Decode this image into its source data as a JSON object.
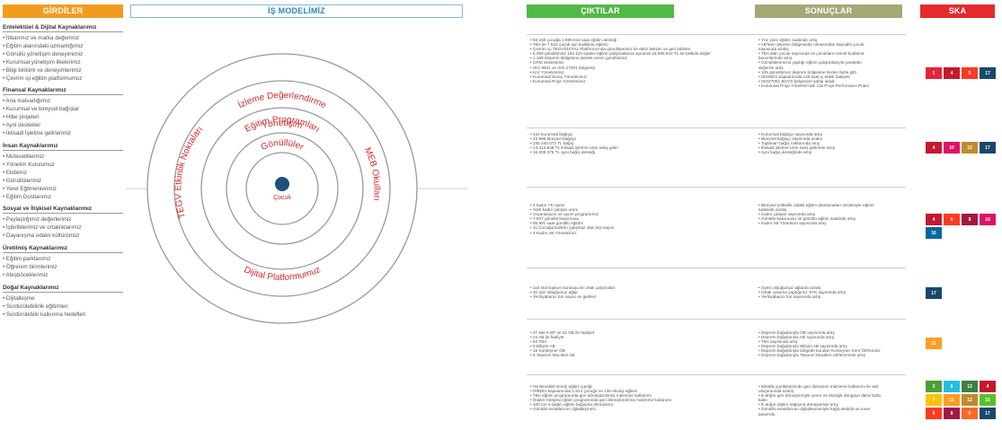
{
  "headers": {
    "inputs": "GİRDİLER",
    "model": "İŞ MODELİMİZ",
    "outputs": "ÇIKTILAR",
    "results": "SONUÇLAR",
    "ska": "SKA"
  },
  "colors": {
    "inputs": "#f29c1f",
    "model": "#7fb8dd",
    "outputs": "#52b848",
    "results": "#a6a875",
    "ska": "#e32b2b",
    "center": "#1f4f7a",
    "ring_text": "#d52a2a"
  },
  "inputs": [
    {
      "title": "Entelektüel & Dijital Kaynaklarımız",
      "items": [
        "İtibarımız ve marka değerimiz",
        "Eğitim alanındaki uzmanlığımız",
        "Gönüllü yönetişim deneyimimiz",
        "Kurumsal yönetişim ilkelerimiz",
        "Bilgi birikimi ve deneyimlerimiz",
        "Çevrim içi eğitim platformumuz"
      ]
    },
    {
      "title": "Finansal Kaynaklarımız",
      "items": [
        "Ana malvarlığımız",
        "Kurumsal ve bireysel bağışlar",
        "Hibe projeleri",
        "Ayni destekler",
        "İktisadi İşletme gelirlerimiz"
      ]
    },
    {
      "title": "İnsan Kaynaklarımız",
      "items": [
        "Mütevellilerimiz",
        "Yönetim Kurulumuz",
        "Ekibimiz",
        "Gönüllülerimiz",
        "Yerel Eğitmenlerimiz",
        "Eğitim Dostlarımız"
      ]
    },
    {
      "title": "Sosyal ve İlişkisel Kaynaklarımız",
      "items": [
        "Paylaştığımız değerlerimiz",
        "İşbirliklerimiz ve ortaklıklarımız",
        "Dayanışma odaklı kültürümüz"
      ]
    },
    {
      "title": "Üretilmiş Kaynaklarımız",
      "items": [
        "Eğitim parklarımız",
        "Öğrenim birimlerimiz",
        "Ateşböceklerimiz"
      ]
    },
    {
      "title": "Doğal Kaynaklarımız",
      "items": [
        "Dijitalleşme",
        "Sürdürülebilirlik eğitimleri",
        "Sürdürülebilir kalkınma hedefleri"
      ]
    }
  ],
  "model": {
    "rings": [
      "Yönetişim",
      "İzleme Değerlendirme",
      "Eğitim Programları",
      "Gönüllüler",
      "Çocuk"
    ],
    "left_label": "TEGV Etkinlik Noktaları",
    "right_label": "MEB Okulları",
    "bottom_label": "Dijital Platformumuz"
  },
  "outputs": [
    [
      "83.150 çocuğa 1.999.615 saat eğitim desteği",
      "TBA ile 7.522 çocuk için kodlama eğitimi",
      "Çevrim içi TEGVDİJİTAL Platformu'nda gönüllülerimiz ile etkin iletişim ve geri bildirim",
      "5.490 gönüllümüz 182.115 saatini eğitim çalışmalarına ayırarak 15.685.942 TL ile katkıda değer",
      "1.188 Deprem Bölgesine destek veren gönüllümüz",
      "CRM Sistemimiz",
      "ISO 9001 ve ISO 27001 belgemiz",
      "Kriz Yönetimimiz",
      "Kurumsal Süreç Yönetimimiz",
      "Kurumsal Proje Yönetimimiz"
    ],
    [
      "444 kurumsal bağışçı",
      "23.995 bireysel bağışçı",
      "235.440.072 TL bağış",
      "13.314.848 TL iktisadi işletme ürün satış geliri",
      "16.209.376 TL ayni bağış desteği"
    ],
    [
      "4 kadın YK üyesi",
      "%55 kadın çalışan oranı",
      "Oryantasyon ve uyum programımız",
      "7.937 gönüllü başvurusu",
      "85.991 saat gönüllü eğitimi",
      "11 Çocuğumuzken çalışmaz olan kişi sayısı",
      "4 Kadın AB Yöneticimiz"
    ],
    [
      "110 sivil toplum kuruluşu ile ortak çalışmalar",
      "20 üye olduğumuz ağlar",
      "Yerli/yabancı fon sayısı ve gelirleri"
    ],
    [
      "27 ilde 6 EP ve 42 ÖB ile faaliyet",
      "24 AB ile faaliyet",
      "53 TBA",
      "8 Bilişim AB",
      "15 Konteyner ÖB",
      "5 Tasarım Mucitleri AB"
    ],
    [
      "Yenilenebilir Enerji eğitim içeriği",
      "DİBDİA kapsamında 1.914 çocuğa ve 136 ekoloji eğitimi",
      "TBA eğitim programında geri dönüştürülmüş malzeme kullanımı",
      "Düşler Atölyesi eğitim programında geri dönüştürülmüş malzeme kullanımı",
      "100 ton e-atığın eğitim bağışına dönüşümü",
      "Gönüllü evraklarının dijitalleşmesi"
    ]
  ],
  "results": [
    [
      "Yüz yüze eğitim saatinde artış",
      "AB'lerin deprem bölgesinde olmasından kaynaklı çocuk",
      "sayısında azalış",
      "TBA alan çocuk sayısında ve çocukların temel kodlama",
      "becerilerinde artış",
      "Gönüllülerimizin yaptığı eğitim çalışmalarıyla yaratılan",
      "değerde artış",
      "109 gönüllümüz deprem bölgesine birden fazla gitti",
      "ISO9001 kapsamında 140 saat iç tetkik faaliyeti",
      "ISO27001 BGYS belgesine sahip olduk",
      "Kurumsal Proje Yönetimi'nde 115 Proje Performans Puanı"
    ],
    [
      "Kurumsal bağışçı sayısında artış",
      "Bireysel bağışçı sayısında azalış",
      "Toplanan bağış miktarında artış",
      "İktisadi işletme ürün satış gelirinde artış",
      "Ayni bağış desteğinde artış"
    ],
    [
      "Bireysel yetkinlik odaklı eğitim planlamaları vesilesiyle eğitim",
      "saatinde azalış",
      "Kadın çalışan sayısında artış",
      "Gönüllü başvurusu ve gönüllü eğitim saatinde artış",
      "Kadın AB Yöneticisi sayısında artış"
    ],
    [
      "Üyesi olduğumuz ağlarda azalış",
      "Ortak çalışma yaptığımız STK sayısında artış",
      "Yerli/yabancı fon sayısında artış"
    ],
    [
      "Deprem bağışlarıyla ÖB sayısında artış",
      "Deprem bağışlarıyla AB sayısında artış",
      "TBA sayısında artış",
      "Deprem bağışlarıyla Bilişim AB sayısında artış",
      "Deprem bağışlarıyla bölgede kurulan Konteyner Kent ÖB'lerimiz",
      "Deprem bağışlarıyla Tasarım Mucitleri AB'lerimizde artış"
    ],
    [
      "Etkinlik içeriklerimizde geri dönüşüm malzeme kullanımı ile atık",
      "oluşumunda azalış",
      "E-atığın geri dönüşümüyle çevre ve ekolojik döngüye daha fazla",
      "katkı",
      "E-atığın eğitim bağışına dönüşümde artış",
      "Gönüllü evraklarının dijitalleşmesiyle kağıt,elektrik ve toner",
      "tasarrufu"
    ]
  ],
  "ska": [
    [
      {
        "n": "1",
        "c": "#e5243b"
      },
      {
        "n": "4",
        "c": "#c5192d"
      },
      {
        "n": "5",
        "c": "#ff3a21"
      },
      {
        "n": "17",
        "c": "#19486a"
      }
    ],
    [
      {
        "n": "4",
        "c": "#c5192d"
      },
      {
        "n": "10",
        "c": "#dd1367"
      },
      {
        "n": "12",
        "c": "#bf8b2e"
      },
      {
        "n": "17",
        "c": "#19486a"
      }
    ],
    [
      {
        "n": "4",
        "c": "#c5192d"
      },
      {
        "n": "5",
        "c": "#ff3a21"
      },
      {
        "n": "8",
        "c": "#a21942"
      },
      {
        "n": "10",
        "c": "#dd1367"
      },
      {
        "n": "16",
        "c": "#00689d"
      }
    ],
    [
      {
        "n": "17",
        "c": "#19486a"
      }
    ],
    [
      {
        "n": "11",
        "c": "#fd9d24"
      }
    ],
    [
      {
        "n": "3",
        "c": "#4c9f38"
      },
      {
        "n": "6",
        "c": "#26bde2"
      },
      {
        "n": "13",
        "c": "#3f7e44"
      },
      {
        "n": "4",
        "c": "#c5192d"
      },
      {
        "n": "7",
        "c": "#fcc30b"
      },
      {
        "n": "11",
        "c": "#fd9d24"
      },
      {
        "n": "12",
        "c": "#bf8b2e"
      },
      {
        "n": "15",
        "c": "#56c02b"
      },
      {
        "n": "5",
        "c": "#ff3a21"
      },
      {
        "n": "8",
        "c": "#a21942"
      },
      {
        "n": "9",
        "c": "#fd6925"
      },
      {
        "n": "17",
        "c": "#19486a"
      }
    ]
  ]
}
